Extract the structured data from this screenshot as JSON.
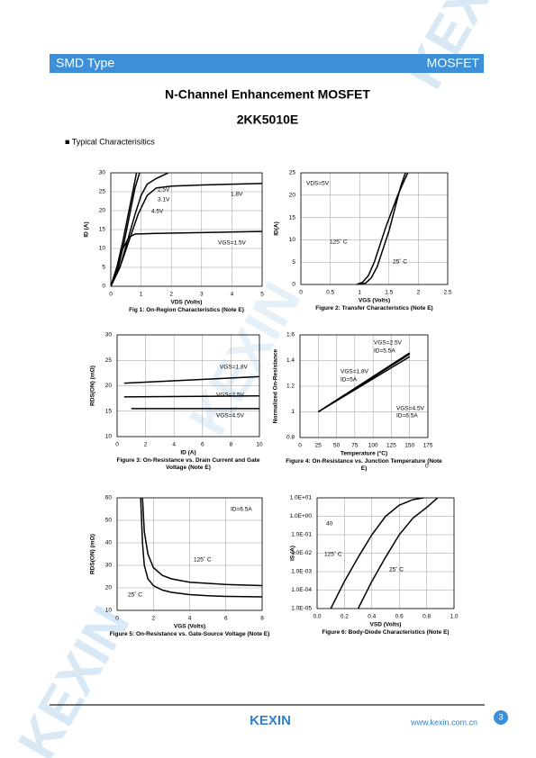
{
  "header": {
    "left": "SMD Type",
    "right": "MOSFET"
  },
  "title": "N-Channel Enhancement MOSFET",
  "part": "2KK5010E",
  "section": "■ Typical  Characterisitics",
  "watermark": "KEXIN",
  "chart_data": [
    {
      "type": "line",
      "caption": "Fig 1: On-Region Characteristics (Note E)",
      "xlabel": "VDS (Volts)",
      "ylabel": "ID (A)",
      "xlim": [
        0,
        5
      ],
      "ylim": [
        0,
        30
      ],
      "xticks": [
        0,
        1,
        2,
        3,
        4,
        5
      ],
      "yticks": [
        0,
        5,
        10,
        15,
        20,
        25,
        30
      ],
      "grid": true,
      "series": [
        {
          "color": "#000000",
          "x": [
            0,
            0.2,
            0.4,
            0.6,
            0.75,
            0.85
          ],
          "values": [
            0,
            5,
            12,
            20,
            26,
            30
          ]
        },
        {
          "color": "#000000",
          "x": [
            0,
            0.25,
            0.45,
            0.65,
            0.8,
            0.95
          ],
          "values": [
            0,
            5,
            12,
            20,
            26,
            30
          ]
        },
        {
          "color": "#000000",
          "x": [
            0,
            0.3,
            0.55,
            0.8,
            1,
            1.2,
            1.5,
            1.9
          ],
          "values": [
            0,
            5,
            12,
            19,
            24,
            27,
            28.5,
            30
          ]
        },
        {
          "color": "#000000",
          "x": [
            0,
            0.3,
            0.6,
            0.9,
            1.2,
            1.5,
            2,
            3,
            4,
            5
          ],
          "values": [
            0,
            5,
            12,
            19,
            24,
            26,
            26.5,
            26.8,
            27,
            27.2
          ]
        },
        {
          "color": "#000000",
          "x": [
            0,
            0.2,
            0.4,
            0.6,
            0.8,
            1.5,
            3,
            5
          ],
          "values": [
            0,
            5,
            10,
            13,
            13.8,
            14,
            14.2,
            14.5
          ]
        }
      ],
      "annotations": [
        "2.5V",
        "3.1V",
        "4.5V",
        "1.8V",
        "VGS=1.5V"
      ]
    },
    {
      "type": "line",
      "caption": "Figure 2: Transfer Characteristics (Note E)",
      "xlabel": "VGS (Volts)",
      "ylabel": "ID(A)",
      "xlim": [
        0,
        2.5
      ],
      "ylim": [
        0,
        25
      ],
      "xticks": [
        0,
        0.5,
        1,
        1.5,
        2,
        2.5
      ],
      "yticks": [
        0,
        5,
        10,
        15,
        20,
        25
      ],
      "grid": true,
      "series": [
        {
          "color": "#000000",
          "x": [
            0.95,
            1.05,
            1.15,
            1.25,
            1.35,
            1.45,
            1.55,
            1.65,
            1.75,
            1.82
          ],
          "values": [
            0,
            0.5,
            2,
            5,
            9,
            13,
            16.5,
            20,
            23,
            25
          ]
        },
        {
          "color": "#000000",
          "x": [
            1,
            1.1,
            1.2,
            1.3,
            1.4,
            1.5,
            1.6,
            1.7,
            1.78
          ],
          "values": [
            0,
            0.3,
            1.5,
            4,
            8,
            12,
            17,
            22,
            25
          ]
        }
      ],
      "annotations": [
        "VDS=5V",
        "125˚ C",
        "25˚ C"
      ]
    },
    {
      "type": "line",
      "caption": "Figure 3: On-Resistance vs. Drain Current and Gate Voltage (Note E)",
      "xlabel": "ID (A)",
      "ylabel": "RDS(ON) (mΩ)",
      "xlim": [
        0,
        10
      ],
      "ylim": [
        10,
        30
      ],
      "xticks": [
        0,
        2,
        4,
        6,
        8,
        10
      ],
      "yticks": [
        10,
        15,
        20,
        25,
        30
      ],
      "grid": true,
      "series": [
        {
          "color": "#000000",
          "x": [
            0.5,
            10
          ],
          "values": [
            20.5,
            21.8
          ]
        },
        {
          "color": "#000000",
          "x": [
            0.5,
            10
          ],
          "values": [
            17.8,
            18
          ]
        },
        {
          "color": "#000000",
          "x": [
            1,
            10
          ],
          "values": [
            15.5,
            15.5
          ]
        }
      ],
      "annotations": [
        "VGS=1.8V",
        "VGS=2.5V",
        "VGS=4.5V"
      ]
    },
    {
      "type": "line",
      "caption": "Figure 4: On-Resistance vs. Junction Temperature (Note E)",
      "xlabel": "Temperature (°C)",
      "ylabel": "Normalized On-Resistance",
      "xlim": [
        0,
        175
      ],
      "ylim": [
        0.8,
        1.6
      ],
      "xticks": [
        0,
        25,
        50,
        75,
        100,
        125,
        150,
        175
      ],
      "yticks": [
        0.8,
        1,
        1.2,
        1.4,
        1.6
      ],
      "grid": true,
      "series": [
        {
          "color": "#000000",
          "x": [
            25,
            150
          ],
          "values": [
            1,
            1.43
          ]
        },
        {
          "color": "#000000",
          "x": [
            25,
            150
          ],
          "values": [
            1,
            1.45
          ]
        },
        {
          "color": "#000000",
          "x": [
            25,
            150
          ],
          "values": [
            1,
            1.46
          ]
        }
      ],
      "annotations": [
        "VGS=2.5V",
        "ID=5.5A",
        "VGS=1.8V",
        "ID=5A",
        "VGS=4.5V",
        "ID=6.5A",
        "0"
      ]
    },
    {
      "type": "line",
      "caption": "Figure 5: On-Resistance vs. Gate-Source Voltage (Note E)",
      "xlabel": "VGS (Volts)",
      "ylabel": "RDS(ON) (mΩ)",
      "xlim": [
        0,
        8
      ],
      "ylim": [
        10,
        60
      ],
      "xticks": [
        0,
        2,
        4,
        6,
        8
      ],
      "yticks": [
        10,
        20,
        30,
        40,
        50,
        60
      ],
      "grid": true,
      "series": [
        {
          "color": "#000000",
          "x": [
            1.4,
            1.5,
            1.7,
            2,
            2.5,
            3,
            4,
            5,
            6,
            8
          ],
          "values": [
            60,
            45,
            35,
            29,
            25.5,
            24,
            22.5,
            22,
            21.5,
            21
          ]
        },
        {
          "color": "#000000",
          "x": [
            1.3,
            1.4,
            1.5,
            1.7,
            2,
            2.5,
            3,
            4,
            5,
            6,
            8
          ],
          "values": [
            60,
            40,
            30,
            24,
            21,
            19,
            18,
            17,
            16.5,
            16.2,
            16
          ]
        }
      ],
      "annotations": [
        "ID=6.5A",
        "125˚ C",
        "25˚ C"
      ]
    },
    {
      "type": "line",
      "caption": "Figure 6: Body-Diode Characteristics (Note E)",
      "xlabel": "VSD (Volts)",
      "ylabel": "IS (A)",
      "log_y": true,
      "xlim": [
        0,
        1
      ],
      "ylim": [
        1e-05,
        10
      ],
      "xticks": [
        {
          "value": 0,
          "label": "0.0"
        },
        0.2,
        0.4,
        0.6,
        0.8,
        {
          "value": 1,
          "label": "1.0"
        }
      ],
      "yticks": [
        {
          "value": 1e-05,
          "label": "1.0E-05"
        },
        {
          "value": 0.0001,
          "label": "1.0E-04"
        },
        {
          "value": 0.001,
          "label": "1.0E-03"
        },
        {
          "value": 0.01,
          "label": "1.0E-02"
        },
        {
          "value": 0.1,
          "label": "1.0E-01"
        },
        {
          "value": 1,
          "label": "1.0E+00"
        },
        {
          "value": 10,
          "label": "1.0E+01"
        }
      ],
      "grid": true,
      "series": [
        {
          "color": "#000000",
          "x": [
            0.1,
            0.2,
            0.3,
            0.4,
            0.5,
            0.6,
            0.7,
            0.78
          ],
          "values": [
            1e-05,
            0.0003,
            0.006,
            0.1,
            1,
            4,
            8,
            10
          ]
        },
        {
          "color": "#000000",
          "x": [
            0.3,
            0.4,
            0.5,
            0.6,
            0.7,
            0.8,
            0.88
          ],
          "values": [
            1e-05,
            0.0003,
            0.006,
            0.1,
            0.8,
            3,
            10
          ]
        }
      ],
      "annotations": [
        "40",
        "125˚ C",
        "25˚ C"
      ]
    }
  ],
  "footer": {
    "logo": "KEXIN",
    "url": "www.kexin.com.cn",
    "page": "3"
  }
}
